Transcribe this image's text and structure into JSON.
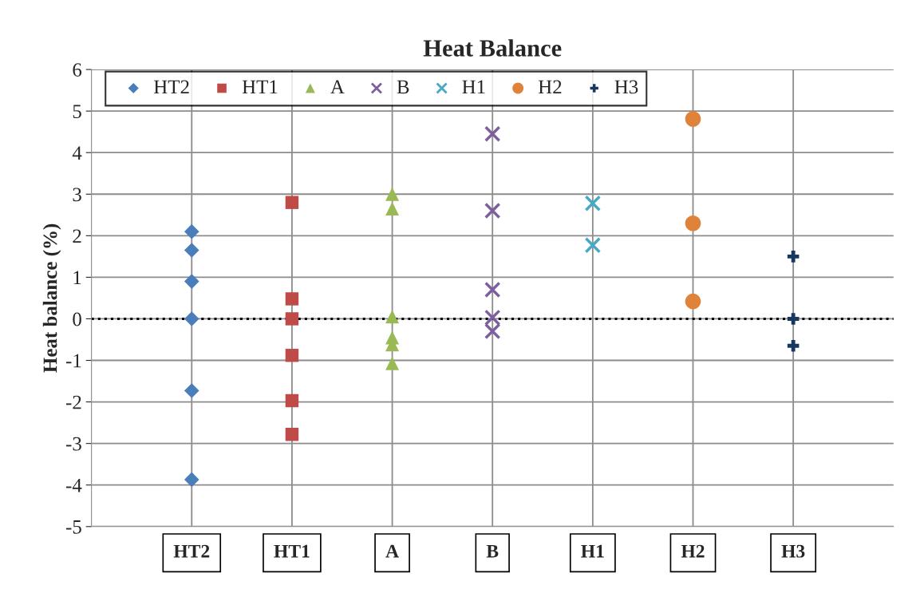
{
  "chart_data": {
    "type": "scatter",
    "title": "Heat Balance",
    "ylabel": "Heat balance (%)",
    "categories": [
      "HT2",
      "HT1",
      "A",
      "B",
      "H1",
      "H2",
      "H3"
    ],
    "series": [
      {
        "name": "HT2",
        "color": "#4a7ebb",
        "marker": "diamond",
        "x": [
          "HT2",
          "HT2",
          "HT2",
          "HT2",
          "HT2",
          "HT2"
        ],
        "values": [
          2.1,
          1.65,
          0.9,
          0,
          -1.73,
          -3.87
        ]
      },
      {
        "name": "HT1",
        "color": "#be4b48",
        "marker": "square",
        "x": [
          "HT1",
          "HT1",
          "HT1",
          "HT1",
          "HT1",
          "HT1"
        ],
        "values": [
          2.8,
          0.48,
          0,
          -0.88,
          -1.97,
          -2.78
        ]
      },
      {
        "name": "A",
        "color": "#98b954",
        "marker": "triangle",
        "x": [
          "A",
          "A",
          "A",
          "A",
          "A",
          "A"
        ],
        "values": [
          3.0,
          2.65,
          0.05,
          -0.45,
          -0.62,
          -1.07
        ]
      },
      {
        "name": "B",
        "color": "#7d5fa0",
        "marker": "cross",
        "x": [
          "B",
          "B",
          "B",
          "B",
          "B"
        ],
        "values": [
          4.45,
          2.6,
          0.7,
          0.03,
          -0.3
        ]
      },
      {
        "name": "H1",
        "color": "#46aac5",
        "marker": "cross",
        "x": [
          "H1",
          "H1"
        ],
        "values": [
          2.78,
          1.77
        ]
      },
      {
        "name": "H2",
        "color": "#e0833a",
        "marker": "circle",
        "x": [
          "H2",
          "H2",
          "H2"
        ],
        "values": [
          4.81,
          2.3,
          0.42
        ]
      },
      {
        "name": "H3",
        "color": "#17375e",
        "marker": "plus",
        "x": [
          "H3",
          "H3",
          "H3"
        ],
        "values": [
          1.5,
          0,
          -0.65
        ]
      }
    ],
    "ylim": [
      -5,
      6
    ],
    "yticks": [
      -5,
      -4,
      -3,
      -2,
      -1,
      0,
      1,
      2,
      3,
      4,
      5,
      6
    ],
    "ref_lines": [
      {
        "axis": "y",
        "value": 0,
        "color": "#000000",
        "line_style": "dotted"
      }
    ],
    "grid": true,
    "legend": "top left"
  }
}
